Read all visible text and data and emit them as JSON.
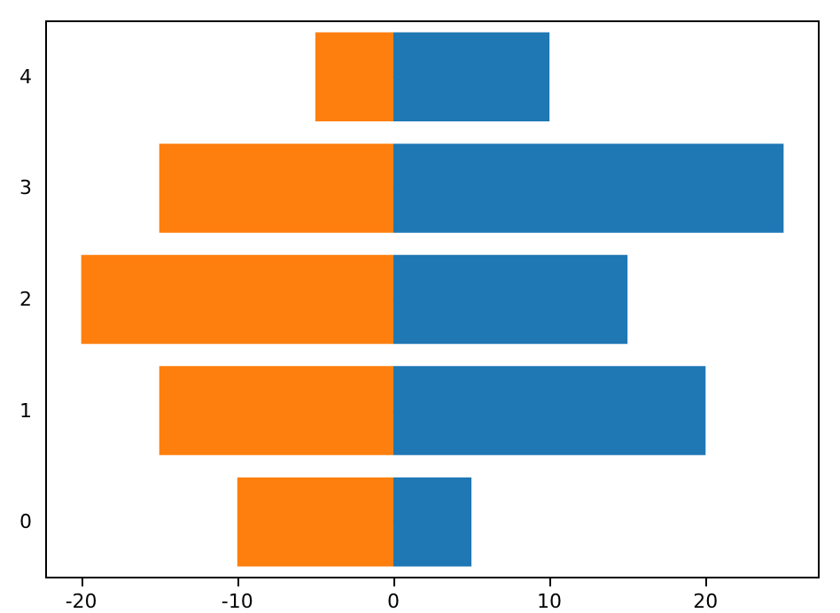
{
  "chart_data": {
    "type": "bar",
    "orientation": "horizontal",
    "stacked": true,
    "categories": [
      "4",
      "3",
      "2",
      "1",
      "0"
    ],
    "series": [
      {
        "color": "#1f77b4",
        "values": [
          10,
          25,
          15,
          20,
          5
        ]
      },
      {
        "color": "#ff7f0e",
        "values": [
          -5,
          -15,
          -20,
          -15,
          -10
        ]
      }
    ],
    "xlim": [
      -22.25,
      27.25
    ],
    "xticks": [
      -20,
      -10,
      0,
      10,
      20
    ],
    "grid": false
  }
}
